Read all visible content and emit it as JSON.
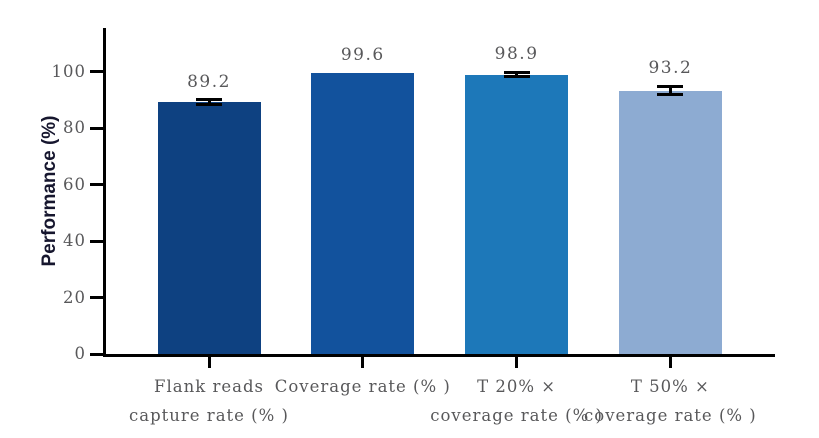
{
  "chart_data": {
    "type": "bar",
    "title": "",
    "xlabel": "",
    "ylabel": "Performance (%)",
    "ylim": [
      0,
      100
    ],
    "yticks": [
      0,
      20,
      40,
      60,
      80,
      100
    ],
    "grid": false,
    "legend": false,
    "categories": [
      "Flank reads\ncapture rate (% )",
      "Coverage rate (% )",
      "T 20% ×\ncoverage rate (% )",
      "T 50% ×\ncoverage rate (% )"
    ],
    "values": [
      89.2,
      99.6,
      98.9,
      93.2
    ],
    "value_labels": [
      "89.2",
      "99.6",
      "98.9",
      "93.2"
    ],
    "errors": [
      0.8,
      0,
      0.8,
      1.5
    ],
    "bar_colors": [
      "#0e4181",
      "#12529d",
      "#1d78b9",
      "#8dabd2"
    ],
    "axis_color": "#000000",
    "error_bar_color": "#000000",
    "tick_label_color": "#58585a",
    "value_label_color": "#58585a",
    "category_label_color": "#58585a",
    "ylabel_color": "#16162e",
    "background_color": "#ffffff"
  }
}
